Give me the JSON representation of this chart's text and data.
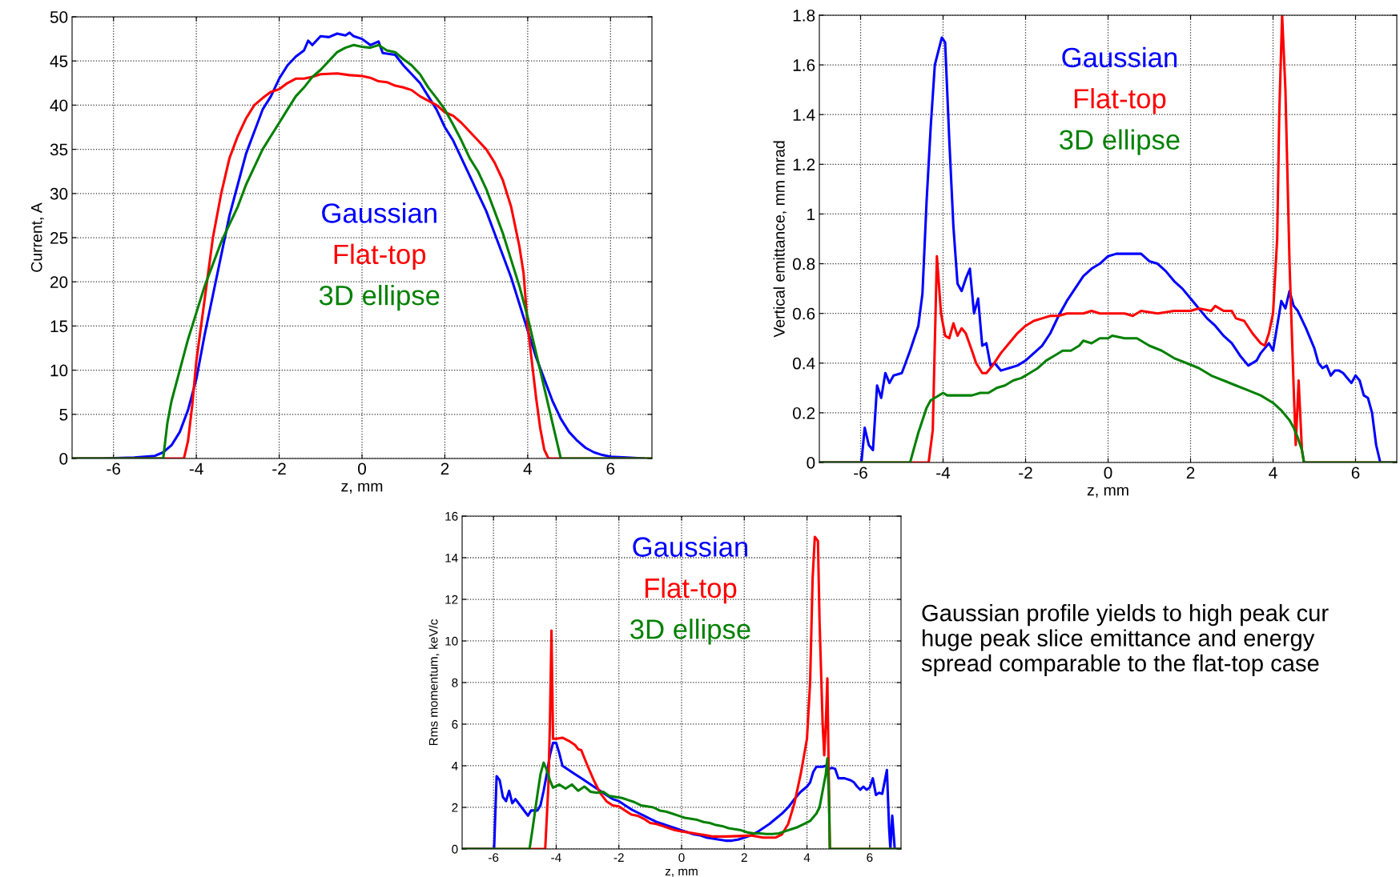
{
  "chart_data": [
    {
      "type": "line",
      "xlabel": "z, mm",
      "ylabel": "Current, A",
      "xlim": [
        -7,
        7
      ],
      "xticks": [
        -6,
        -4,
        -2,
        0,
        2,
        4,
        6
      ],
      "ylim": [
        0,
        50
      ],
      "yticks": [
        0,
        5,
        10,
        15,
        20,
        25,
        30,
        35,
        40,
        45,
        50
      ],
      "grid": true,
      "legend": "center",
      "series": [
        {
          "name": "Gaussian",
          "color": "#0000ff",
          "x": [
            -7,
            -6.3,
            -5.5,
            -5,
            -4.8,
            -4.6,
            -4.4,
            -4.2,
            -4,
            -3.8,
            -3.6,
            -3.4,
            -3.2,
            -3,
            -2.8,
            -2.6,
            -2.4,
            -2.2,
            -2,
            -1.8,
            -1.6,
            -1.4,
            -1.3,
            -1.2,
            -1,
            -0.8,
            -0.6,
            -0.4,
            -0.3,
            -0.2,
            0,
            0.2,
            0.4,
            0.5,
            0.8,
            1,
            1.2,
            1.4,
            1.6,
            1.8,
            2,
            2.2,
            2.4,
            2.6,
            2.8,
            3,
            3.2,
            3.4,
            3.6,
            3.8,
            4,
            4.2,
            4.4,
            4.6,
            4.8,
            5,
            5.2,
            5.4,
            5.6,
            5.8,
            6,
            6.4,
            6.8
          ],
          "values": [
            0,
            0,
            0.1,
            0.3,
            0.7,
            1.5,
            3,
            5.5,
            9,
            14,
            18.5,
            23,
            27.5,
            31,
            34.5,
            37,
            39.5,
            41,
            43,
            44.5,
            45.5,
            46.2,
            47.3,
            46.8,
            47.8,
            47.7,
            48.1,
            47.9,
            48.2,
            47.8,
            47.5,
            46.8,
            47.2,
            45.9,
            45.7,
            44.5,
            43.5,
            42.5,
            41,
            39.5,
            37.5,
            36,
            34,
            32,
            30,
            28,
            25.5,
            23,
            20.5,
            17.5,
            14.5,
            11.5,
            9,
            6.5,
            4.5,
            3,
            2,
            1.2,
            0.7,
            0.4,
            0.2,
            0.1,
            0
          ]
        },
        {
          "name": "Flat-top",
          "color": "#ff0000",
          "x": [
            -7,
            -4.3,
            -4.2,
            -4.1,
            -4,
            -3.8,
            -3.6,
            -3.4,
            -3.2,
            -3,
            -2.8,
            -2.6,
            -2.4,
            -2.2,
            -2,
            -1.8,
            -1.6,
            -1.4,
            -1.2,
            -1,
            -0.6,
            -0.3,
            0,
            0.2,
            0.4,
            0.6,
            0.8,
            1,
            1.2,
            1.4,
            1.6,
            1.8,
            2,
            2.2,
            2.4,
            2.6,
            2.8,
            3,
            3.2,
            3.4,
            3.6,
            3.8,
            3.9,
            4,
            4.1,
            4.2,
            4.3,
            4.4,
            4.5,
            7
          ],
          "values": [
            0,
            0,
            2,
            6,
            11,
            18,
            25,
            30,
            34,
            36.5,
            38.5,
            40,
            40.8,
            41.5,
            41.8,
            42.5,
            43,
            43,
            43.2,
            43.5,
            43.6,
            43.4,
            43.3,
            43.1,
            42.7,
            42.6,
            42.2,
            42,
            41.7,
            41,
            40.5,
            40,
            39.2,
            38.8,
            38,
            37,
            36,
            35,
            33.5,
            31.5,
            28.5,
            24,
            21,
            15,
            11,
            7,
            3.5,
            1,
            0,
            0
          ]
        },
        {
          "name": "3D ellipse",
          "color": "#008000",
          "x": [
            -7,
            -4.8,
            -4.7,
            -4.6,
            -4.4,
            -4.2,
            -4,
            -3.8,
            -3.6,
            -3.4,
            -3.2,
            -3,
            -2.8,
            -2.6,
            -2.4,
            -2.2,
            -2,
            -1.8,
            -1.6,
            -1.4,
            -1.2,
            -1,
            -0.8,
            -0.6,
            -0.4,
            -0.2,
            0,
            0.2,
            0.4,
            0.6,
            0.8,
            1,
            1.2,
            1.4,
            1.6,
            1.8,
            2,
            2.2,
            2.4,
            2.6,
            2.8,
            3,
            3.2,
            3.4,
            3.6,
            3.8,
            4,
            4.2,
            4.4,
            4.6,
            4.8,
            7
          ],
          "values": [
            0,
            0,
            4,
            6.5,
            10,
            13.5,
            16.5,
            19.5,
            22,
            24.5,
            26.5,
            28.5,
            31,
            33,
            35,
            36.5,
            38,
            39.5,
            41,
            42,
            43.2,
            44,
            45,
            46,
            46.5,
            46.8,
            46.6,
            46.5,
            46.8,
            46.2,
            46,
            45.2,
            44.5,
            43.5,
            42,
            40.8,
            39.5,
            37.8,
            36,
            34,
            32.5,
            30.5,
            28,
            25.5,
            22.5,
            19.5,
            16,
            12,
            8,
            4,
            0,
            0
          ]
        }
      ]
    },
    {
      "type": "line",
      "xlabel": "z, mm",
      "ylabel": "Vertical emittance, mm mrad",
      "xlim": [
        -7,
        7
      ],
      "xticks": [
        -6,
        -4,
        -2,
        0,
        2,
        4,
        6
      ],
      "ylim": [
        0,
        1.8
      ],
      "yticks": [
        0,
        0.2,
        0.4,
        0.6,
        0.8,
        1,
        1.2,
        1.4,
        1.6,
        1.8
      ],
      "grid": true,
      "legend": "top",
      "series": [
        {
          "name": "Gaussian",
          "color": "#0000ff",
          "x": [
            -7,
            -5.98,
            -5.9,
            -5.8,
            -5.7,
            -5.6,
            -5.5,
            -5.4,
            -5.3,
            -5.2,
            -5,
            -4.8,
            -4.6,
            -4.5,
            -4.4,
            -4.3,
            -4.2,
            -4.03,
            -3.95,
            -3.85,
            -3.75,
            -3.65,
            -3.55,
            -3.45,
            -3.35,
            -3.25,
            -3.15,
            -3.05,
            -2.95,
            -2.85,
            -2.75,
            -2.6,
            -2.4,
            -2.2,
            -2,
            -1.8,
            -1.6,
            -1.4,
            -1.2,
            -1,
            -0.8,
            -0.6,
            -0.4,
            -0.2,
            0,
            0.2,
            0.4,
            0.6,
            0.8,
            1,
            1.2,
            1.4,
            1.6,
            1.8,
            2,
            2.2,
            2.4,
            2.6,
            2.8,
            3,
            3.2,
            3.4,
            3.6,
            3.7,
            3.8,
            3.9,
            4,
            4.1,
            4.2,
            4.3,
            4.4,
            4.5,
            4.6,
            4.8,
            5,
            5.1,
            5.2,
            5.3,
            5.4,
            5.5,
            5.6,
            5.7,
            5.8,
            5.9,
            6,
            6.1,
            6.2,
            6.3,
            6.4,
            6.5,
            6.6,
            7
          ],
          "values": [
            0,
            0,
            0.14,
            0.07,
            0.05,
            0.31,
            0.26,
            0.36,
            0.32,
            0.35,
            0.36,
            0.45,
            0.55,
            0.68,
            1.05,
            1.35,
            1.6,
            1.71,
            1.69,
            1.3,
            0.95,
            0.72,
            0.69,
            0.74,
            0.78,
            0.6,
            0.66,
            0.47,
            0.48,
            0.39,
            0.4,
            0.37,
            0.38,
            0.39,
            0.41,
            0.44,
            0.47,
            0.52,
            0.59,
            0.65,
            0.7,
            0.75,
            0.78,
            0.8,
            0.83,
            0.84,
            0.84,
            0.84,
            0.84,
            0.81,
            0.8,
            0.77,
            0.73,
            0.7,
            0.66,
            0.62,
            0.58,
            0.55,
            0.51,
            0.48,
            0.43,
            0.39,
            0.41,
            0.44,
            0.46,
            0.48,
            0.45,
            0.55,
            0.65,
            0.62,
            0.69,
            0.63,
            0.61,
            0.54,
            0.46,
            0.4,
            0.38,
            0.39,
            0.35,
            0.37,
            0.37,
            0.36,
            0.34,
            0.32,
            0.35,
            0.33,
            0.27,
            0.26,
            0.2,
            0.07,
            0,
            0
          ]
        },
        {
          "name": "Flat-top",
          "color": "#ff0000",
          "x": [
            -7,
            -4.35,
            -4.25,
            -4.15,
            -4.05,
            -3.95,
            -3.85,
            -3.75,
            -3.65,
            -3.55,
            -3.45,
            -3.3,
            -3.2,
            -3.05,
            -2.95,
            -2.8,
            -2.6,
            -2.4,
            -2.2,
            -2,
            -1.8,
            -1.6,
            -1.4,
            -1.2,
            -1,
            -0.8,
            -0.6,
            -0.4,
            -0.2,
            0,
            0.4,
            0.6,
            0.8,
            1.2,
            1.6,
            2,
            2.2,
            2.5,
            2.6,
            2.8,
            3,
            3.1,
            3.3,
            3.5,
            3.7,
            3.8,
            3.9,
            4,
            4.1,
            4.15,
            4.22,
            4.3,
            4.4,
            4.5,
            4.55,
            4.62,
            4.7,
            4.75,
            7
          ],
          "values": [
            0,
            0,
            0.13,
            0.83,
            0.6,
            0.51,
            0.5,
            0.56,
            0.51,
            0.54,
            0.52,
            0.45,
            0.4,
            0.36,
            0.36,
            0.39,
            0.44,
            0.48,
            0.52,
            0.55,
            0.57,
            0.58,
            0.59,
            0.59,
            0.6,
            0.6,
            0.6,
            0.61,
            0.6,
            0.6,
            0.6,
            0.59,
            0.61,
            0.6,
            0.61,
            0.61,
            0.62,
            0.61,
            0.63,
            0.61,
            0.61,
            0.58,
            0.57,
            0.52,
            0.48,
            0.47,
            0.52,
            0.6,
            0.9,
            1.4,
            1.8,
            1.5,
            0.8,
            0.3,
            0.07,
            0.33,
            0.05,
            0,
            0
          ]
        },
        {
          "name": "3D ellipse",
          "color": "#008000",
          "x": [
            -7,
            -4.8,
            -4.7,
            -4.6,
            -4.5,
            -4.4,
            -4.3,
            -4.2,
            -4,
            -3.9,
            -3.7,
            -3.5,
            -3.3,
            -3.1,
            -2.9,
            -2.7,
            -2.5,
            -2.3,
            -2.1,
            -1.9,
            -1.7,
            -1.5,
            -1.3,
            -1.1,
            -0.9,
            -0.7,
            -0.6,
            -0.4,
            -0.2,
            0,
            0.1,
            0.4,
            0.7,
            1,
            1.3,
            1.6,
            1.9,
            2.2,
            2.5,
            2.8,
            3.1,
            3.4,
            3.7,
            4,
            4.2,
            4.4,
            4.5,
            4.6,
            4.7,
            4.75,
            7
          ],
          "values": [
            0,
            0,
            0.06,
            0.12,
            0.17,
            0.22,
            0.25,
            0.26,
            0.28,
            0.27,
            0.27,
            0.27,
            0.27,
            0.28,
            0.28,
            0.3,
            0.31,
            0.33,
            0.34,
            0.36,
            0.38,
            0.41,
            0.43,
            0.45,
            0.45,
            0.47,
            0.49,
            0.48,
            0.5,
            0.5,
            0.51,
            0.5,
            0.5,
            0.47,
            0.45,
            0.42,
            0.4,
            0.38,
            0.35,
            0.33,
            0.31,
            0.29,
            0.27,
            0.24,
            0.21,
            0.17,
            0.14,
            0.1,
            0.05,
            0,
            0
          ]
        }
      ]
    },
    {
      "type": "line",
      "xlabel": "z, mm",
      "ylabel": "Rms momentum, keV/c",
      "xlim": [
        -7,
        7
      ],
      "xticks": [
        -6,
        -4,
        -2,
        0,
        2,
        4,
        6
      ],
      "ylim": [
        0,
        16
      ],
      "yticks": [
        0,
        2,
        4,
        6,
        8,
        10,
        12,
        14,
        16
      ],
      "grid": true,
      "legend": "top",
      "annotations": [
        "Gaussian profile yields to high peak cur\nhuge peak slice emittance and energy\nspread comparable to the flat-top case"
      ],
      "series": [
        {
          "name": "Gaussian",
          "color": "#0000ff",
          "x": [
            -7,
            -5.98,
            -5.9,
            -5.8,
            -5.7,
            -5.6,
            -5.5,
            -5.4,
            -5.3,
            -5.1,
            -4.9,
            -4.8,
            -4.6,
            -4.5,
            -4.4,
            -4.3,
            -4.2,
            -4.1,
            -4,
            -3.9,
            -3.8,
            -3.6,
            -3.4,
            -3.2,
            -3,
            -2.8,
            -2.6,
            -2.4,
            -2.2,
            -2,
            -1.8,
            -1.6,
            -1.4,
            -1.2,
            -1,
            -0.8,
            -0.6,
            -0.4,
            -0.2,
            0,
            0.2,
            0.4,
            0.6,
            0.8,
            1,
            1.2,
            1.4,
            1.6,
            1.8,
            2,
            2.2,
            2.4,
            2.6,
            2.8,
            3,
            3.2,
            3.4,
            3.6,
            3.8,
            4,
            4.1,
            4.2,
            4.3,
            4.5,
            4.6,
            4.7,
            4.8,
            4.9,
            5,
            5.2,
            5.4,
            5.5,
            5.6,
            5.7,
            5.8,
            5.9,
            6,
            6.1,
            6.2,
            6.3,
            6.4,
            6.55,
            6.62,
            6.66,
            6.72,
            6.8,
            7
          ],
          "values": [
            0,
            0,
            3.5,
            3.3,
            2.5,
            2.3,
            2.8,
            2.2,
            2.4,
            2,
            1.6,
            1.85,
            1.85,
            2.1,
            2.8,
            3.6,
            4.5,
            5.1,
            5.1,
            4.6,
            4,
            3.8,
            3.6,
            3.4,
            3.2,
            3,
            2.8,
            2.6,
            2.4,
            2.3,
            2.1,
            1.9,
            1.75,
            1.6,
            1.45,
            1.3,
            1.2,
            1.1,
            1,
            0.9,
            0.8,
            0.7,
            0.65,
            0.55,
            0.5,
            0.45,
            0.4,
            0.4,
            0.45,
            0.55,
            0.65,
            0.8,
            1,
            1.2,
            1.45,
            1.7,
            2,
            2.4,
            2.75,
            3,
            3.2,
            3.7,
            3.95,
            3.95,
            4,
            3.85,
            3.9,
            3.85,
            3.4,
            3.4,
            3.3,
            3.2,
            3,
            2.85,
            3,
            2.85,
            2.95,
            3.4,
            2.6,
            2.7,
            2.65,
            3.8,
            1,
            0,
            1.6,
            0,
            0
          ]
        },
        {
          "name": "Flat-top",
          "color": "#ff0000",
          "x": [
            -7,
            -4.35,
            -4.25,
            -4.2,
            -4.15,
            -4.1,
            -4,
            -3.8,
            -3.6,
            -3.4,
            -3.3,
            -3.2,
            -3,
            -2.8,
            -2.6,
            -2.4,
            -2.2,
            -2,
            -1.8,
            -1.6,
            -1.4,
            -1.2,
            -1,
            -0.8,
            -0.6,
            -0.4,
            -0.2,
            0,
            0.2,
            0.4,
            0.6,
            0.8,
            1,
            1.4,
            1.8,
            2.2,
            2.6,
            3,
            3.2,
            3.4,
            3.6,
            3.8,
            4,
            4.1,
            4.18,
            4.25,
            4.35,
            4.4,
            4.5,
            4.55,
            4.6,
            4.65,
            4.7,
            4.73,
            7
          ],
          "values": [
            0,
            0,
            3,
            6,
            10.5,
            5.3,
            5.3,
            5.35,
            5.2,
            5,
            4.8,
            4.75,
            4,
            3.3,
            2.7,
            2.3,
            2.1,
            2.05,
            1.85,
            1.65,
            1.6,
            1.45,
            1.25,
            1.2,
            1.1,
            1,
            0.9,
            0.85,
            0.8,
            0.75,
            0.7,
            0.65,
            0.6,
            0.6,
            0.62,
            0.65,
            0.55,
            0.55,
            0.7,
            1.2,
            2.2,
            3.6,
            5.3,
            8,
            13,
            15,
            14.8,
            11,
            6,
            4.5,
            6,
            8.2,
            3,
            0,
            0
          ]
        },
        {
          "name": "3D ellipse",
          "color": "#008000",
          "x": [
            -7,
            -4.85,
            -4.75,
            -4.6,
            -4.5,
            -4.4,
            -4.3,
            -4.2,
            -4.1,
            -3.9,
            -3.7,
            -3.5,
            -3.3,
            -3.1,
            -2.9,
            -2.7,
            -2.5,
            -2.3,
            -2.1,
            -1.9,
            -1.7,
            -1.5,
            -1.3,
            -1.1,
            -0.9,
            -0.7,
            -0.5,
            -0.3,
            -0.1,
            0.1,
            0.3,
            0.5,
            0.7,
            0.9,
            1.1,
            1.3,
            1.5,
            1.7,
            1.9,
            2.1,
            2.3,
            2.5,
            2.7,
            2.9,
            3.1,
            3.3,
            3.5,
            3.7,
            3.9,
            4.1,
            4.3,
            4.4,
            4.5,
            4.6,
            4.65,
            4.7,
            4.73,
            7
          ],
          "values": [
            0,
            0,
            1,
            2.6,
            3.6,
            4.15,
            3.8,
            3.3,
            2.95,
            3.1,
            2.9,
            3.1,
            2.8,
            3,
            2.75,
            2.7,
            2.75,
            2.55,
            2.5,
            2.45,
            2.35,
            2.25,
            2.1,
            2.05,
            2,
            1.85,
            1.8,
            1.7,
            1.6,
            1.5,
            1.45,
            1.4,
            1.3,
            1.25,
            1.15,
            1.1,
            1,
            0.95,
            0.9,
            0.8,
            0.75,
            0.75,
            0.72,
            0.72,
            0.75,
            0.85,
            0.95,
            1.05,
            1.2,
            1.35,
            1.7,
            2,
            2.8,
            3.6,
            4.35,
            2.5,
            0,
            0
          ]
        }
      ]
    }
  ]
}
